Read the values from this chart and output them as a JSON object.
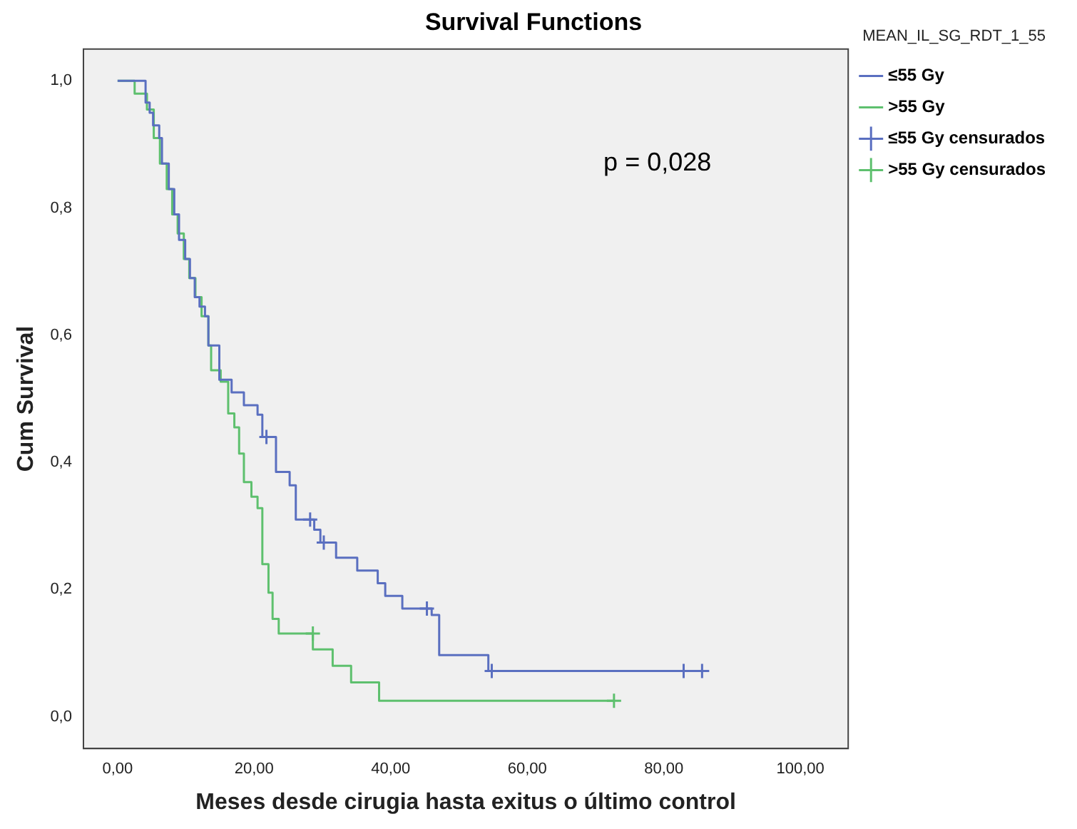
{
  "chart_data": {
    "type": "step",
    "title": "Survival Functions",
    "xlabel": "Meses desde cirugia hasta exitus o último control",
    "ylabel": "Cum Survival",
    "legend_title": "MEAN_IL_SG_RDT_1_55",
    "legend": "right",
    "grid": false,
    "xlim": [
      -5,
      107
    ],
    "ylim": [
      -0.05,
      1.05
    ],
    "xticks": [
      {
        "value": 0,
        "label": "0,00"
      },
      {
        "value": 20,
        "label": "20,00"
      },
      {
        "value": 40,
        "label": "40,00"
      },
      {
        "value": 60,
        "label": "60,00"
      },
      {
        "value": 80,
        "label": "80,00"
      },
      {
        "value": 100,
        "label": "100,00"
      }
    ],
    "yticks": [
      {
        "value": 0,
        "label": "0,0"
      },
      {
        "value": 0.2,
        "label": "0,2"
      },
      {
        "value": 0.4,
        "label": "0,4"
      },
      {
        "value": 0.6,
        "label": "0,6"
      },
      {
        "value": 0.8,
        "label": "0,8"
      },
      {
        "value": 1,
        "label": "1,0"
      }
    ],
    "annotations": [
      "p = 0,028"
    ],
    "series": [
      {
        "name": "≤55 Gy",
        "color": "#5a6fc0",
        "marker": "none",
        "x": [
          0,
          4.1,
          4.7,
          5.2,
          6.1,
          6.5,
          7.5,
          8.3,
          9,
          9.9,
          10.6,
          11.3,
          12,
          12.8,
          13.3,
          14.9,
          16.7,
          18.5,
          20.5,
          21.2,
          23.2,
          25.2,
          26.1,
          28.8,
          29.7,
          32,
          35.1,
          38.1,
          39.2,
          41.7,
          46,
          47.1,
          54.3,
          85.6
        ],
        "values": [
          1,
          0.966,
          0.95,
          0.93,
          0.91,
          0.87,
          0.83,
          0.79,
          0.75,
          0.72,
          0.69,
          0.66,
          0.645,
          0.63,
          0.584,
          0.53,
          0.51,
          0.49,
          0.475,
          0.44,
          0.385,
          0.364,
          0.31,
          0.294,
          0.274,
          0.25,
          0.23,
          0.21,
          0.19,
          0.17,
          0.16,
          0.097,
          0.072,
          0.072
        ]
      },
      {
        "name": ">55 Gy",
        "color": "#5ec06e",
        "marker": "none",
        "x": [
          0,
          2.5,
          4.3,
          5.3,
          6.2,
          7.2,
          8,
          8.8,
          9.7,
          10.5,
          11.4,
          12.3,
          13.3,
          13.7,
          15.1,
          16.2,
          17.1,
          17.8,
          18.5,
          19.6,
          20.5,
          21.2,
          22.1,
          22.7,
          23.6,
          28.6,
          31.5,
          34.2,
          38.3,
          72.7
        ],
        "values": [
          1,
          0.98,
          0.955,
          0.91,
          0.87,
          0.83,
          0.79,
          0.76,
          0.72,
          0.69,
          0.66,
          0.63,
          0.584,
          0.545,
          0.527,
          0.477,
          0.455,
          0.414,
          0.369,
          0.346,
          0.328,
          0.24,
          0.195,
          0.154,
          0.131,
          0.106,
          0.08,
          0.054,
          0.025,
          0.025
        ]
      },
      {
        "name": "≤55 Gy censurados",
        "type": "scatter",
        "color": "#5a6fc0",
        "marker": "cross",
        "x": [
          21.8,
          28.2,
          30.2,
          45.3,
          54.8,
          82.9,
          85.6
        ],
        "values": [
          0.44,
          0.31,
          0.274,
          0.17,
          0.072,
          0.072,
          0.072
        ]
      },
      {
        "name": ">55 Gy censurados",
        "type": "scatter",
        "color": "#5ec06e",
        "marker": "cross",
        "x": [
          28.6,
          72.7
        ],
        "values": [
          0.131,
          0.025
        ]
      }
    ]
  }
}
